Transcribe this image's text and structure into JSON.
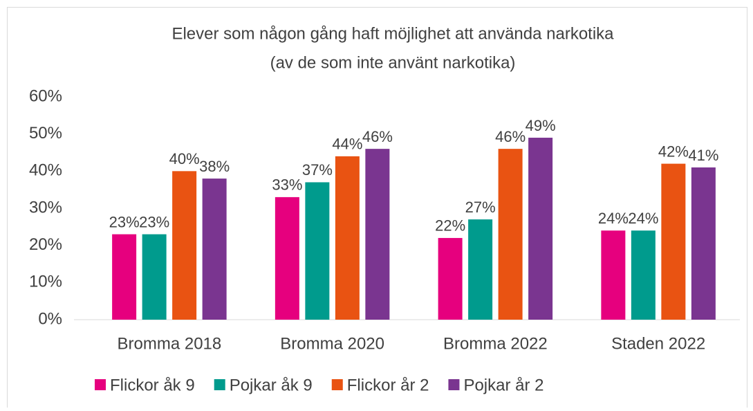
{
  "chart_data": {
    "type": "bar",
    "title": "Elever som någon gång haft möjlighet att använda narkotika",
    "subtitle": "(av de som inte använt narkotika)",
    "categories": [
      "Bromma 2018",
      "Bromma 2020",
      "Bromma 2022",
      "Staden 2022"
    ],
    "series": [
      {
        "name": "Flickor åk 9",
        "color": "#e6007e",
        "values": [
          23,
          33,
          22,
          24
        ],
        "value_labels": [
          "23%",
          "33%",
          "22%",
          "24%"
        ]
      },
      {
        "name": "Pojkar åk 9",
        "color": "#009b8d",
        "values": [
          23,
          37,
          27,
          24
        ],
        "value_labels": [
          "23%",
          "37%",
          "27%",
          "24%"
        ]
      },
      {
        "name": "Flickor år 2",
        "color": "#e95312",
        "values": [
          40,
          44,
          46,
          42
        ],
        "value_labels": [
          "40%",
          "44%",
          "46%",
          "42%"
        ]
      },
      {
        "name": "Pojkar år 2",
        "color": "#7a3590",
        "values": [
          38,
          46,
          49,
          41
        ],
        "value_labels": [
          "38%",
          "46%",
          "49%",
          "41%"
        ]
      }
    ],
    "ylim": [
      0,
      60
    ],
    "yticks": [
      {
        "value": 0,
        "label": "0%"
      },
      {
        "value": 10,
        "label": "10%"
      },
      {
        "value": 20,
        "label": "20%"
      },
      {
        "value": 30,
        "label": "30%"
      },
      {
        "value": 40,
        "label": "40%"
      },
      {
        "value": 50,
        "label": "50%"
      },
      {
        "value": 60,
        "label": "60%"
      }
    ],
    "legend": "bottom"
  }
}
